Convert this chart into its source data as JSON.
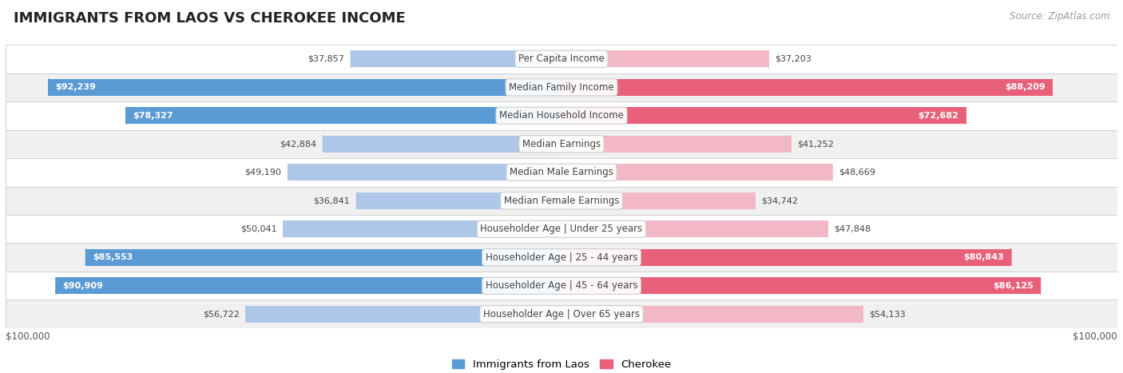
{
  "title": "IMMIGRANTS FROM LAOS VS CHEROKEE INCOME",
  "source": "Source: ZipAtlas.com",
  "categories": [
    "Per Capita Income",
    "Median Family Income",
    "Median Household Income",
    "Median Earnings",
    "Median Male Earnings",
    "Median Female Earnings",
    "Householder Age | Under 25 years",
    "Householder Age | 25 - 44 years",
    "Householder Age | 45 - 64 years",
    "Householder Age | Over 65 years"
  ],
  "laos_values": [
    37857,
    92239,
    78327,
    42884,
    49190,
    36841,
    50041,
    85553,
    90909,
    56722
  ],
  "cherokee_values": [
    37203,
    88209,
    72682,
    41252,
    48669,
    34742,
    47848,
    80843,
    86125,
    54133
  ],
  "laos_labels": [
    "$37,857",
    "$92,239",
    "$78,327",
    "$42,884",
    "$49,190",
    "$36,841",
    "$50,041",
    "$85,553",
    "$90,909",
    "$56,722"
  ],
  "cherokee_labels": [
    "$37,203",
    "$88,209",
    "$72,682",
    "$41,252",
    "$48,669",
    "$34,742",
    "$47,848",
    "$80,843",
    "$86,125",
    "$54,133"
  ],
  "max_value": 100000,
  "laos_color_full": "#5b9bd5",
  "laos_color_light": "#aec6e8",
  "cherokee_color_full": "#e8607a",
  "cherokee_color_light": "#f2b8c6",
  "label_inside_threshold": 65000,
  "background_color": "#ffffff",
  "row_bg_alt": "#f0f0f0",
  "separator_color": "#d0d0d0",
  "legend_laos": "Immigrants from Laos",
  "legend_cherokee": "Cherokee",
  "category_font_size": 8.5,
  "label_font_size": 8.0
}
